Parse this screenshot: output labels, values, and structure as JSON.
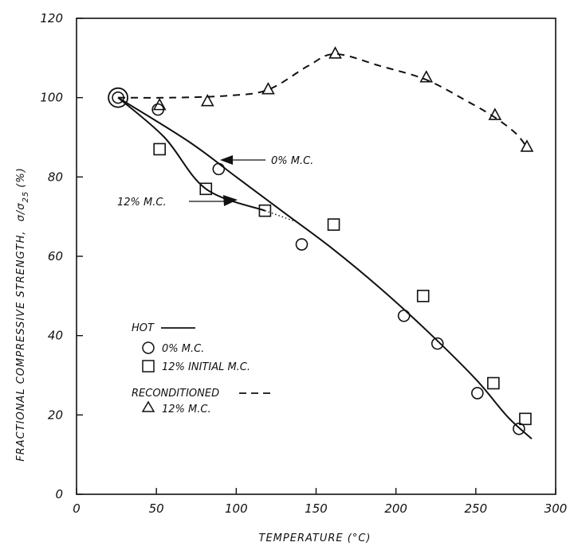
{
  "chart_data": {
    "type": "scatter",
    "xlabel": "TEMPERATURE (°C)",
    "ylabel": "FRACTIONAL COMPRESSIVE STRENGTH,",
    "ylabel_formula": {
      "sigma": "σ",
      "slash": "/",
      "sub": "25",
      "unit": "(%)"
    },
    "xlim": [
      0,
      300
    ],
    "ylim": [
      0,
      120
    ],
    "xticks": [
      0,
      50,
      100,
      150,
      200,
      250,
      300
    ],
    "yticks": [
      0,
      20,
      40,
      60,
      80,
      100,
      120
    ],
    "grid": false,
    "legend_position": "lower-left",
    "legend": {
      "hot": "HOT",
      "hot_zero": "0% M.C.",
      "hot_initial": "12% INITIAL M.C.",
      "reconditioned": "RECONDITIONED",
      "recond_12": "12% M.C."
    },
    "annotations": {
      "zero_mc": "0% M.C.",
      "twelve_mc": "12% M.C."
    },
    "series": [
      {
        "marker": "circle",
        "points": [
          [
            26,
            100
          ],
          [
            51,
            97
          ],
          [
            89,
            82
          ],
          [
            141,
            63
          ],
          [
            205,
            45
          ],
          [
            226,
            38
          ],
          [
            251,
            25.5
          ],
          [
            277,
            16.5
          ]
        ]
      },
      {
        "marker": "square",
        "points": [
          [
            26,
            100
          ],
          [
            52,
            87
          ],
          [
            81,
            77
          ],
          [
            118,
            71.5
          ],
          [
            161,
            68
          ],
          [
            217,
            50
          ],
          [
            261,
            28
          ],
          [
            281,
            19
          ]
        ]
      },
      {
        "marker": "triangle",
        "points": [
          [
            26,
            100
          ],
          [
            52,
            98
          ],
          [
            82,
            99
          ],
          [
            120,
            102
          ],
          [
            162,
            111
          ],
          [
            219,
            105
          ],
          [
            262,
            95.5
          ],
          [
            282,
            87.5
          ]
        ]
      }
    ],
    "curves": {
      "hot_zero": [
        [
          26,
          100
        ],
        [
          70,
          89
        ],
        [
          100,
          80
        ],
        [
          130,
          71
        ],
        [
          160,
          62
        ],
        [
          190,
          52
        ],
        [
          220,
          41
        ],
        [
          250,
          29
        ],
        [
          270,
          19.5
        ],
        [
          285,
          14
        ]
      ],
      "hot_twelve": [
        [
          26,
          100
        ],
        [
          55,
          90
        ],
        [
          81,
          77
        ],
        [
          118,
          71.5
        ]
      ],
      "hot_twelve_dotted": [
        [
          118,
          71.5
        ],
        [
          139,
          68.5
        ]
      ],
      "reconditioned": [
        [
          26,
          100
        ],
        [
          60,
          100
        ],
        [
          95,
          100.5
        ],
        [
          120,
          102
        ],
        [
          145,
          108
        ],
        [
          162,
          111
        ],
        [
          190,
          108
        ],
        [
          219,
          104.5
        ],
        [
          245,
          99
        ],
        [
          262,
          95
        ],
        [
          275,
          91
        ],
        [
          282,
          87.5
        ]
      ]
    }
  }
}
